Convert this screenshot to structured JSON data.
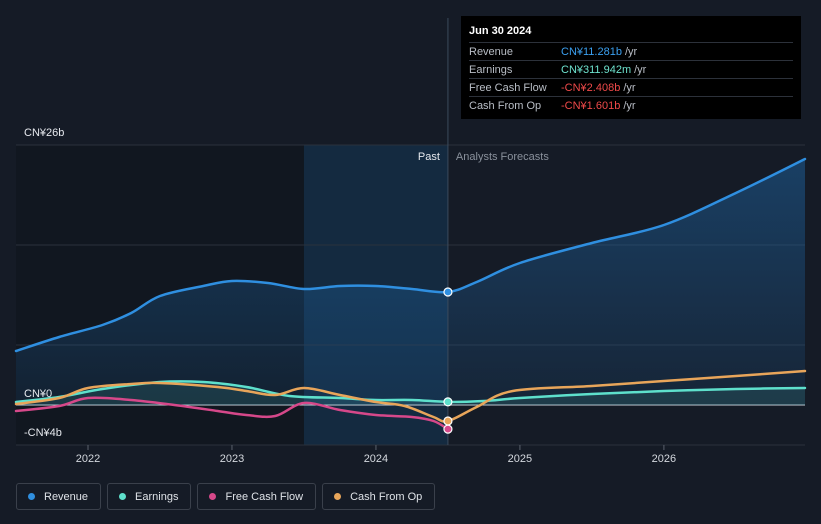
{
  "tooltip": {
    "date": "Jun 30 2024",
    "rows": [
      {
        "name": "Revenue",
        "value": "CN¥11.281b",
        "unit": "/yr",
        "color": "#3ba0f0"
      },
      {
        "name": "Earnings",
        "value": "CN¥311.942m",
        "unit": "/yr",
        "color": "#6ee3cf"
      },
      {
        "name": "Free Cash Flow",
        "value": "-CN¥2.408b",
        "unit": "/yr",
        "color": "#f04a4a"
      },
      {
        "name": "Cash From Op",
        "value": "-CN¥1.601b",
        "unit": "/yr",
        "color": "#f04a4a"
      }
    ]
  },
  "legend": [
    {
      "label": "Revenue",
      "color": "#2f8fe0"
    },
    {
      "label": "Earnings",
      "color": "#5ee0cc"
    },
    {
      "label": "Free Cash Flow",
      "color": "#d6488a"
    },
    {
      "label": "Cash From Op",
      "color": "#e8a55a"
    }
  ],
  "chart_data": {
    "type": "line",
    "title": "",
    "y_labels": {
      "top": "CN¥26b",
      "zero": "CN¥0",
      "bottom": "-CN¥4b"
    },
    "ylim": [
      -4,
      26
    ],
    "xlim": [
      2021.5,
      2026.98
    ],
    "x_ticks": [
      {
        "value": 2022,
        "label": "2022"
      },
      {
        "value": 2023,
        "label": "2023"
      },
      {
        "value": 2024,
        "label": "2024"
      },
      {
        "value": 2025,
        "label": "2025"
      },
      {
        "value": 2026,
        "label": "2026"
      }
    ],
    "past_label": "Past",
    "forecast_label": "Analysts Forecasts",
    "highlight_start": 2023.5,
    "divider_x": 2024.5,
    "series": [
      {
        "name": "Revenue",
        "color": "#2f8fe0",
        "fill": true,
        "points": [
          [
            2021.5,
            5.4
          ],
          [
            2021.8,
            6.8
          ],
          [
            2022.1,
            8.0
          ],
          [
            2022.3,
            9.2
          ],
          [
            2022.5,
            10.9
          ],
          [
            2022.8,
            11.9
          ],
          [
            2023.0,
            12.4
          ],
          [
            2023.25,
            12.2
          ],
          [
            2023.5,
            11.6
          ],
          [
            2023.75,
            11.9
          ],
          [
            2024.0,
            11.9
          ],
          [
            2024.25,
            11.6
          ],
          [
            2024.5,
            11.3
          ],
          [
            2024.7,
            12.3
          ],
          [
            2025.0,
            14.2
          ],
          [
            2025.5,
            16.2
          ],
          [
            2026.0,
            18.0
          ],
          [
            2026.5,
            21.2
          ],
          [
            2026.98,
            24.6
          ]
        ]
      },
      {
        "name": "Earnings",
        "color": "#5ee0cc",
        "fill": true,
        "points": [
          [
            2021.5,
            0.3
          ],
          [
            2021.8,
            0.8
          ],
          [
            2022.1,
            1.6
          ],
          [
            2022.5,
            2.3
          ],
          [
            2022.8,
            2.3
          ],
          [
            2023.1,
            1.8
          ],
          [
            2023.4,
            0.9
          ],
          [
            2023.75,
            0.7
          ],
          [
            2024.0,
            0.5
          ],
          [
            2024.25,
            0.5
          ],
          [
            2024.5,
            0.31
          ],
          [
            2024.75,
            0.4
          ],
          [
            2025.0,
            0.7
          ],
          [
            2025.5,
            1.1
          ],
          [
            2026.0,
            1.4
          ],
          [
            2026.5,
            1.6
          ],
          [
            2026.98,
            1.7
          ]
        ]
      },
      {
        "name": "Free Cash Flow",
        "color": "#d6488a",
        "fill": false,
        "points": [
          [
            2021.5,
            -0.6
          ],
          [
            2021.8,
            -0.1
          ],
          [
            2022.0,
            0.7
          ],
          [
            2022.3,
            0.5
          ],
          [
            2022.6,
            0.0
          ],
          [
            2022.9,
            -0.6
          ],
          [
            2023.1,
            -1.0
          ],
          [
            2023.3,
            -1.1
          ],
          [
            2023.5,
            0.2
          ],
          [
            2023.75,
            -0.5
          ],
          [
            2024.0,
            -1.0
          ],
          [
            2024.25,
            -1.2
          ],
          [
            2024.4,
            -1.6
          ],
          [
            2024.5,
            -2.41
          ]
        ]
      },
      {
        "name": "Cash From Op",
        "color": "#e8a55a",
        "fill": false,
        "points": [
          [
            2021.5,
            0.1
          ],
          [
            2021.8,
            0.7
          ],
          [
            2022.0,
            1.7
          ],
          [
            2022.3,
            2.1
          ],
          [
            2022.5,
            2.2
          ],
          [
            2022.9,
            1.8
          ],
          [
            2023.1,
            1.4
          ],
          [
            2023.3,
            1.0
          ],
          [
            2023.5,
            1.7
          ],
          [
            2023.75,
            1.0
          ],
          [
            2024.0,
            0.3
          ],
          [
            2024.2,
            -0.1
          ],
          [
            2024.4,
            -1.2
          ],
          [
            2024.5,
            -1.6
          ],
          [
            2024.7,
            -0.2
          ],
          [
            2024.95,
            1.4
          ],
          [
            2025.5,
            1.9
          ],
          [
            2026.0,
            2.4
          ],
          [
            2026.5,
            2.9
          ],
          [
            2026.98,
            3.4
          ]
        ]
      }
    ]
  }
}
